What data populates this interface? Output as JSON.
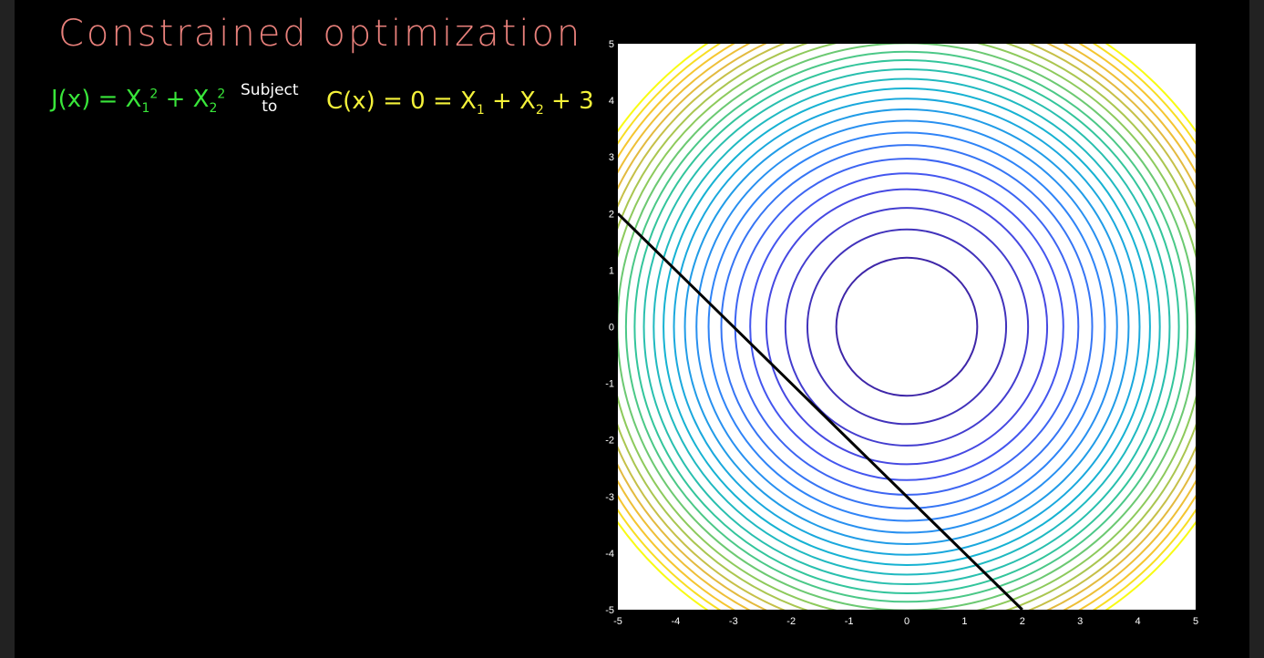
{
  "colors": {
    "title": "#e8807b",
    "objective": "#39e63a",
    "constraint": "#f4f23a",
    "subject_to": "#ffffff",
    "constraint_line": "#000000",
    "plot_bg": "#ffffff",
    "board": "#000000"
  },
  "board": {
    "title": "Constrained optimization",
    "objective": {
      "lhs": "J(x) = X",
      "sub1": "1",
      "sup1": "2",
      "plus": " + X",
      "sub2": "2",
      "sup2": "2"
    },
    "subject_to": {
      "line1": "Subject",
      "line2": "to"
    },
    "constraint": {
      "lhs": "C(x) = 0 = X",
      "sub1": "1",
      "mid": " + X",
      "sub2": "2",
      "rhs": " + 3"
    }
  },
  "chart_data": {
    "type": "contour",
    "function": "x1^2 + x2^2",
    "xlim": [
      -5,
      5
    ],
    "ylim": [
      -5,
      5
    ],
    "x_ticks": [
      "-5",
      "-4",
      "-3",
      "-2",
      "-1",
      "0",
      "1",
      "2",
      "3",
      "4",
      "5"
    ],
    "y_ticks": [
      "5",
      "4",
      "3",
      "2",
      "1",
      "0",
      "-1",
      "-2",
      "-3",
      "-4",
      "-5"
    ],
    "contour_radii": [
      1.22,
      1.72,
      2.1,
      2.43,
      2.71,
      2.97,
      3.21,
      3.43,
      3.64,
      3.84,
      4.03,
      4.21,
      4.38,
      4.55,
      4.71,
      4.86,
      5.01,
      5.16,
      5.3,
      5.44,
      5.57,
      5.7,
      5.83,
      5.96,
      6.08
    ],
    "colormap": "parula",
    "constraint_line": {
      "equation": "x1 + x2 + 3 = 0",
      "x": [
        -5,
        2
      ],
      "y": [
        2,
        -5
      ]
    },
    "grid": false
  }
}
